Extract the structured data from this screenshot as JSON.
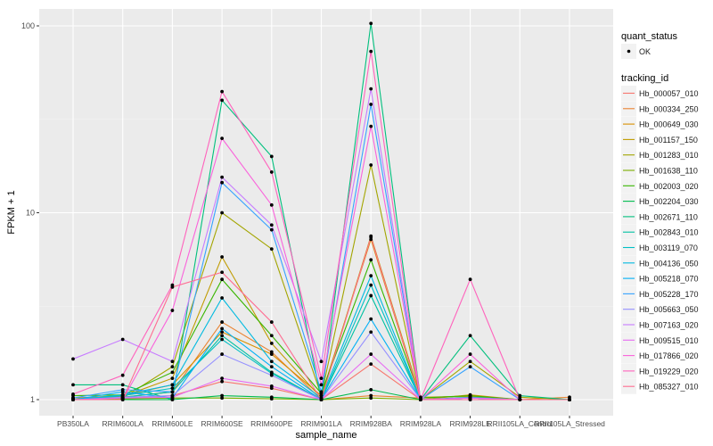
{
  "chart_data": {
    "type": "line",
    "xlabel": "sample_name",
    "ylabel": "FPKM + 1",
    "yscale": "log10",
    "ylim": [
      0.95,
      110
    ],
    "yticks": [
      1,
      10,
      100
    ],
    "ytick_labels": [
      "1",
      "10",
      "100"
    ],
    "categories": [
      "PB350LA",
      "RRIM600LA",
      "RRIM600LE",
      "RRIM600SE",
      "RRIM600PE",
      "RRIM901LA",
      "RRIM928BA",
      "RRIM928LA",
      "RRIM928LE",
      "RRII105LA_Control",
      "RRII105LA_Stressed"
    ],
    "legend_shape": {
      "title": "quant_status",
      "entries": [
        "OK"
      ]
    },
    "legend_color": {
      "title": "tracking_id",
      "placement": "right"
    },
    "series": [
      {
        "name": "Hb_000057_010",
        "color": "#F8766D",
        "values": [
          1.0,
          1.02,
          1.05,
          1.25,
          1.15,
          1.0,
          1.55,
          1.0,
          1.02,
          1.0,
          1.0
        ]
      },
      {
        "name": "Hb_000334_250",
        "color": "#EA8331",
        "values": [
          1.0,
          1.03,
          1.1,
          2.6,
          1.8,
          1.0,
          1.05,
          1.02,
          1.05,
          1.0,
          1.03
        ]
      },
      {
        "name": "Hb_000649_030",
        "color": "#D89000",
        "values": [
          1.02,
          1.05,
          1.2,
          2.3,
          1.75,
          1.05,
          7.2,
          1.0,
          1.06,
          1.0,
          1.0
        ]
      },
      {
        "name": "Hb_001157_150",
        "color": "#C09B00",
        "values": [
          1.0,
          1.04,
          1.3,
          5.8,
          2.0,
          1.02,
          7.5,
          1.03,
          1.04,
          1.0,
          1.0
        ]
      },
      {
        "name": "Hb_001283_010",
        "color": "#A3A500",
        "values": [
          1.0,
          1.02,
          1.5,
          10.0,
          6.4,
          1.05,
          18.0,
          1.0,
          1.6,
          1.03,
          1.0
        ]
      },
      {
        "name": "Hb_001638_110",
        "color": "#7CAE00",
        "values": [
          1.0,
          1.01,
          1.02,
          1.02,
          1.01,
          1.0,
          1.02,
          1.0,
          1.0,
          1.0,
          1.0
        ]
      },
      {
        "name": "Hb_002003_020",
        "color": "#39B600",
        "values": [
          1.05,
          1.06,
          1.4,
          4.4,
          2.2,
          1.08,
          5.6,
          1.02,
          1.05,
          1.0,
          1.0
        ]
      },
      {
        "name": "Hb_002204_030",
        "color": "#00BB4E",
        "values": [
          1.0,
          1.0,
          1.0,
          1.05,
          1.03,
          1.0,
          1.13,
          1.0,
          1.0,
          1.0,
          1.0
        ]
      },
      {
        "name": "Hb_002671_110",
        "color": "#00BF7D",
        "values": [
          1.2,
          1.2,
          1.0,
          40.0,
          20.0,
          1.0,
          103.0,
          1.0,
          2.2,
          1.05,
          1.0
        ]
      },
      {
        "name": "Hb_002843_010",
        "color": "#00C1A3",
        "values": [
          1.0,
          1.03,
          1.1,
          2.2,
          1.4,
          1.0,
          3.6,
          1.0,
          1.02,
          1.0,
          1.0
        ]
      },
      {
        "name": "Hb_003119_070",
        "color": "#00BFC4",
        "values": [
          1.0,
          1.05,
          1.15,
          2.1,
          1.38,
          1.0,
          4.1,
          1.0,
          1.03,
          1.0,
          1.0
        ]
      },
      {
        "name": "Hb_004136_050",
        "color": "#00BAE0",
        "values": [
          1.0,
          1.06,
          1.2,
          3.5,
          1.6,
          1.02,
          4.6,
          1.0,
          1.02,
          1.0,
          1.0
        ]
      },
      {
        "name": "Hb_005218_070",
        "color": "#00B0F6",
        "values": [
          1.0,
          1.1,
          1.02,
          2.4,
          1.5,
          1.0,
          2.7,
          1.0,
          1.02,
          1.0,
          1.0
        ]
      },
      {
        "name": "Hb_005228_170",
        "color": "#35A2FF",
        "values": [
          1.02,
          1.13,
          1.1,
          14.5,
          8.1,
          1.1,
          38.0,
          1.0,
          1.5,
          1.0,
          1.0
        ]
      },
      {
        "name": "Hb_005663_050",
        "color": "#9590FF",
        "values": [
          1.0,
          1.03,
          1.05,
          1.75,
          1.35,
          1.0,
          2.3,
          1.0,
          1.02,
          1.0,
          1.0
        ]
      },
      {
        "name": "Hb_007163_020",
        "color": "#C77CFF",
        "values": [
          1.65,
          2.1,
          1.6,
          15.5,
          8.6,
          1.6,
          46.0,
          1.0,
          1.02,
          1.0,
          1.0
        ]
      },
      {
        "name": "Hb_009515_010",
        "color": "#E76BF3",
        "values": [
          1.0,
          1.02,
          1.03,
          1.3,
          1.18,
          1.0,
          1.75,
          1.0,
          1.02,
          1.0,
          1.0
        ]
      },
      {
        "name": "Hb_017866_020",
        "color": "#FA62DB",
        "values": [
          1.0,
          1.0,
          3.0,
          25.0,
          11.0,
          1.2,
          29.0,
          1.0,
          1.75,
          1.0,
          1.0
        ]
      },
      {
        "name": "Hb_019229_020",
        "color": "#FF62BC",
        "values": [
          1.07,
          1.35,
          4.1,
          44.5,
          16.5,
          1.3,
          73.0,
          1.0,
          4.4,
          1.0,
          1.0
        ]
      },
      {
        "name": "Hb_085327_010",
        "color": "#FF6C91",
        "values": [
          1.0,
          1.0,
          4.0,
          4.8,
          2.6,
          1.0,
          7.4,
          1.0,
          1.0,
          1.0,
          1.0
        ]
      }
    ]
  }
}
